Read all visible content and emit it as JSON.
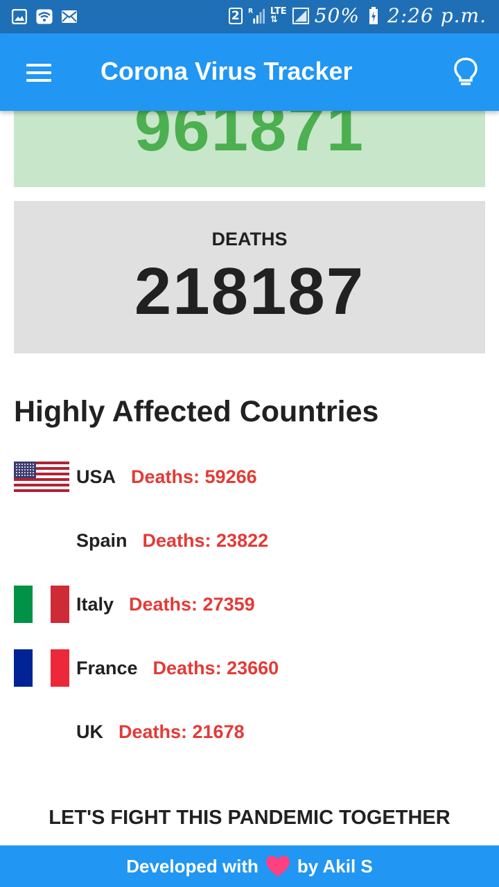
{
  "status_bar": {
    "sim": "2",
    "network_type": "LTE",
    "battery": "50%",
    "time": "2:26 p.m."
  },
  "app_bar": {
    "title": "Corona Virus Tracker"
  },
  "stats": {
    "recovered_value": "961871",
    "deaths_label": "DEATHS",
    "deaths_value": "218187"
  },
  "section": {
    "title": "Highly Affected Countries"
  },
  "countries": [
    {
      "name": "USA",
      "deaths": "Deaths: 59266",
      "flag": "usa-flag"
    },
    {
      "name": "Spain",
      "deaths": "Deaths: 23822",
      "flag": "none"
    },
    {
      "name": "Italy",
      "deaths": "Deaths: 27359",
      "flag": "italy-flag"
    },
    {
      "name": "France",
      "deaths": "Deaths: 23660",
      "flag": "france-flag"
    },
    {
      "name": "UK",
      "deaths": "Deaths: 21678",
      "flag": "none"
    }
  ],
  "slogan": "LET'S FIGHT THIS PANDEMIC TOGETHER",
  "footer": {
    "prefix": "Developed with",
    "suffix": "by Akil S"
  },
  "colors": {
    "status_bar": "#1f6fb6",
    "app_bar": "#2196f3",
    "recovered_bg": "#c8e6c9",
    "recovered_text": "#4caf50",
    "deaths_bg": "#e0e0e0",
    "death_count_red": "#e53935",
    "heart": "#ff4081"
  }
}
